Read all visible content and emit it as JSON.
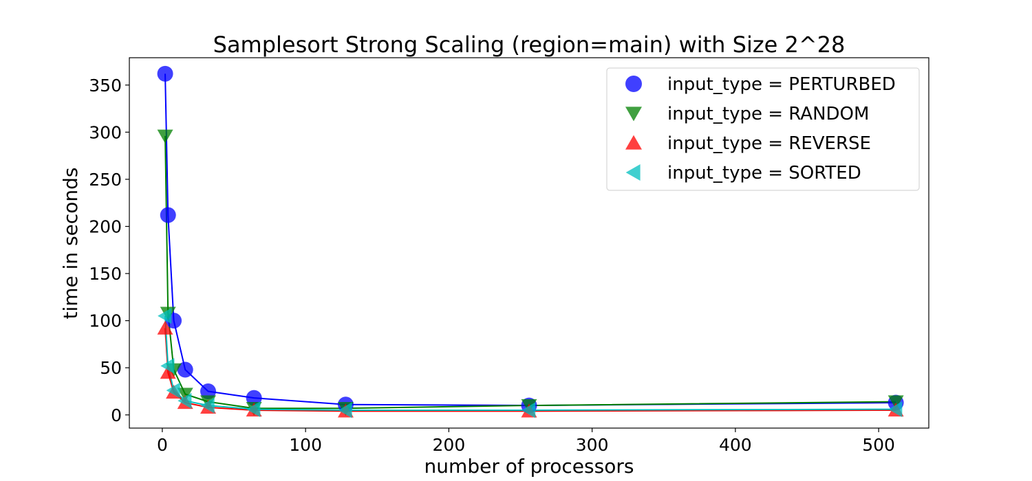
{
  "chart_data": {
    "type": "scatter",
    "title": "Samplesort Strong Scaling (region=main) with Size 2^28",
    "xlabel": "number of processors",
    "ylabel": "time in seconds",
    "xlim": [
      -23,
      535
    ],
    "ylim": [
      -14,
      379
    ],
    "xticks": [
      0,
      100,
      200,
      300,
      400,
      500
    ],
    "yticks": [
      0,
      50,
      100,
      150,
      200,
      250,
      300,
      350
    ],
    "grid": false,
    "legend_position": "top-right",
    "x": [
      2,
      4,
      8,
      16,
      32,
      64,
      128,
      256,
      512
    ],
    "series": [
      {
        "name": "input_type = PERTURBED",
        "marker": "circle",
        "color": "#0000ff",
        "values": [
          362,
          212,
          100,
          48,
          25,
          18,
          11,
          10,
          13
        ]
      },
      {
        "name": "input_type = RANDOM",
        "marker": "triangle-down",
        "color": "#008000",
        "values": [
          296,
          108,
          48,
          22,
          14,
          7,
          7,
          10,
          14
        ]
      },
      {
        "name": "input_type = REVERSE",
        "marker": "triangle-up",
        "color": "#ff0000",
        "values": [
          92,
          45,
          24,
          13,
          8,
          5,
          4,
          4,
          5
        ]
      },
      {
        "name": "input_type = SORTED",
        "marker": "triangle-left",
        "color": "#00bfbf",
        "values": [
          105,
          52,
          26,
          15,
          10,
          6,
          5,
          5,
          6
        ]
      }
    ]
  }
}
